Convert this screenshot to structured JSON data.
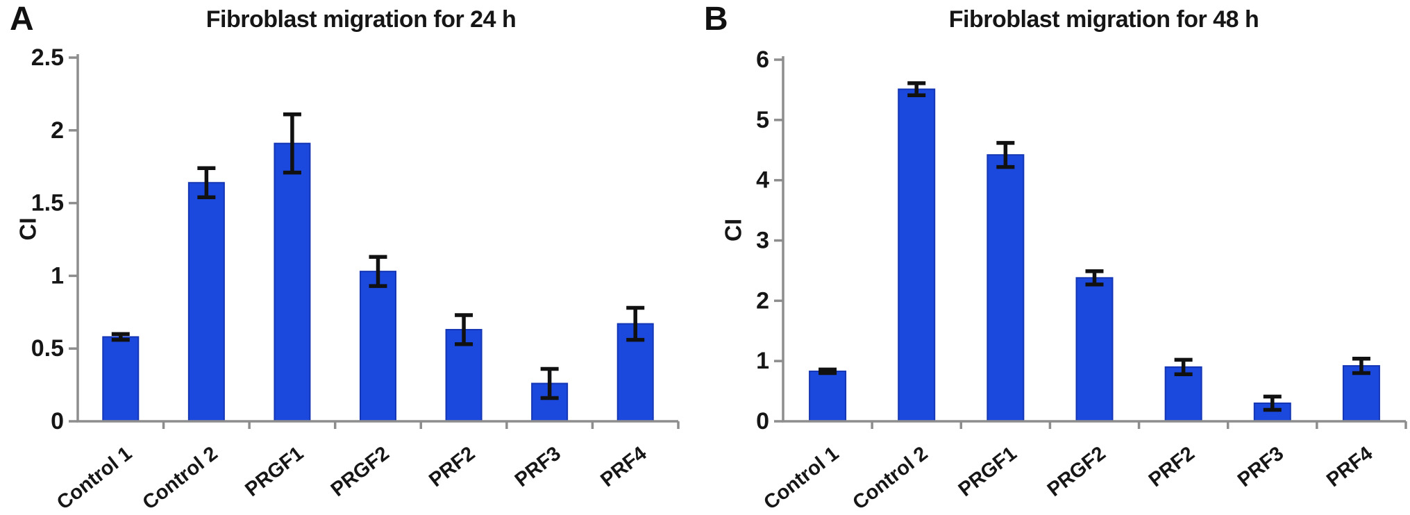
{
  "figure": {
    "background": "#ffffff",
    "panel_a_letter": "A",
    "panel_b_letter": "B"
  },
  "colors": {
    "bar": "#1c49dd",
    "bar_edge": "#1436b4",
    "axis": "#8d8d8d",
    "error": "#111111",
    "text": "#161616"
  },
  "chart_data": [
    {
      "type": "bar",
      "panel_label": "A",
      "title": "Fibroblast migration for 24 h",
      "ylabel": "CI",
      "xlabel": "",
      "categories": [
        "Control 1",
        "Control 2",
        "PRGF1",
        "PRGF2",
        "PRF2",
        "PRF3",
        "PRF4"
      ],
      "values": [
        0.58,
        1.64,
        1.91,
        1.03,
        0.63,
        0.26,
        0.67
      ],
      "errors": [
        0.02,
        0.1,
        0.2,
        0.1,
        0.1,
        0.1,
        0.11
      ],
      "ylim": [
        0,
        2.5
      ],
      "ytick_vals": [
        0,
        0.5,
        1,
        1.5,
        2,
        2.5
      ],
      "ytick_labels": [
        "0",
        "0.5",
        "1",
        "1.5",
        "2",
        "2.5"
      ],
      "grid": false,
      "legend": null
    },
    {
      "type": "bar",
      "panel_label": "B",
      "title": "Fibroblast migration for 48 h",
      "ylabel": "CI",
      "xlabel": "",
      "categories": [
        "Control 1",
        "Control 2",
        "PRGF1",
        "PRGF2",
        "PRF2",
        "PRF3",
        "PRF4"
      ],
      "values": [
        0.83,
        5.51,
        4.42,
        2.38,
        0.9,
        0.3,
        0.92
      ],
      "errors": [
        0.03,
        0.1,
        0.2,
        0.11,
        0.12,
        0.11,
        0.12
      ],
      "ylim": [
        0,
        6
      ],
      "ytick_vals": [
        0,
        1,
        2,
        3,
        4,
        5,
        6
      ],
      "ytick_labels": [
        "0",
        "1",
        "2",
        "3",
        "4",
        "5",
        "6"
      ],
      "grid": false,
      "legend": null
    }
  ]
}
